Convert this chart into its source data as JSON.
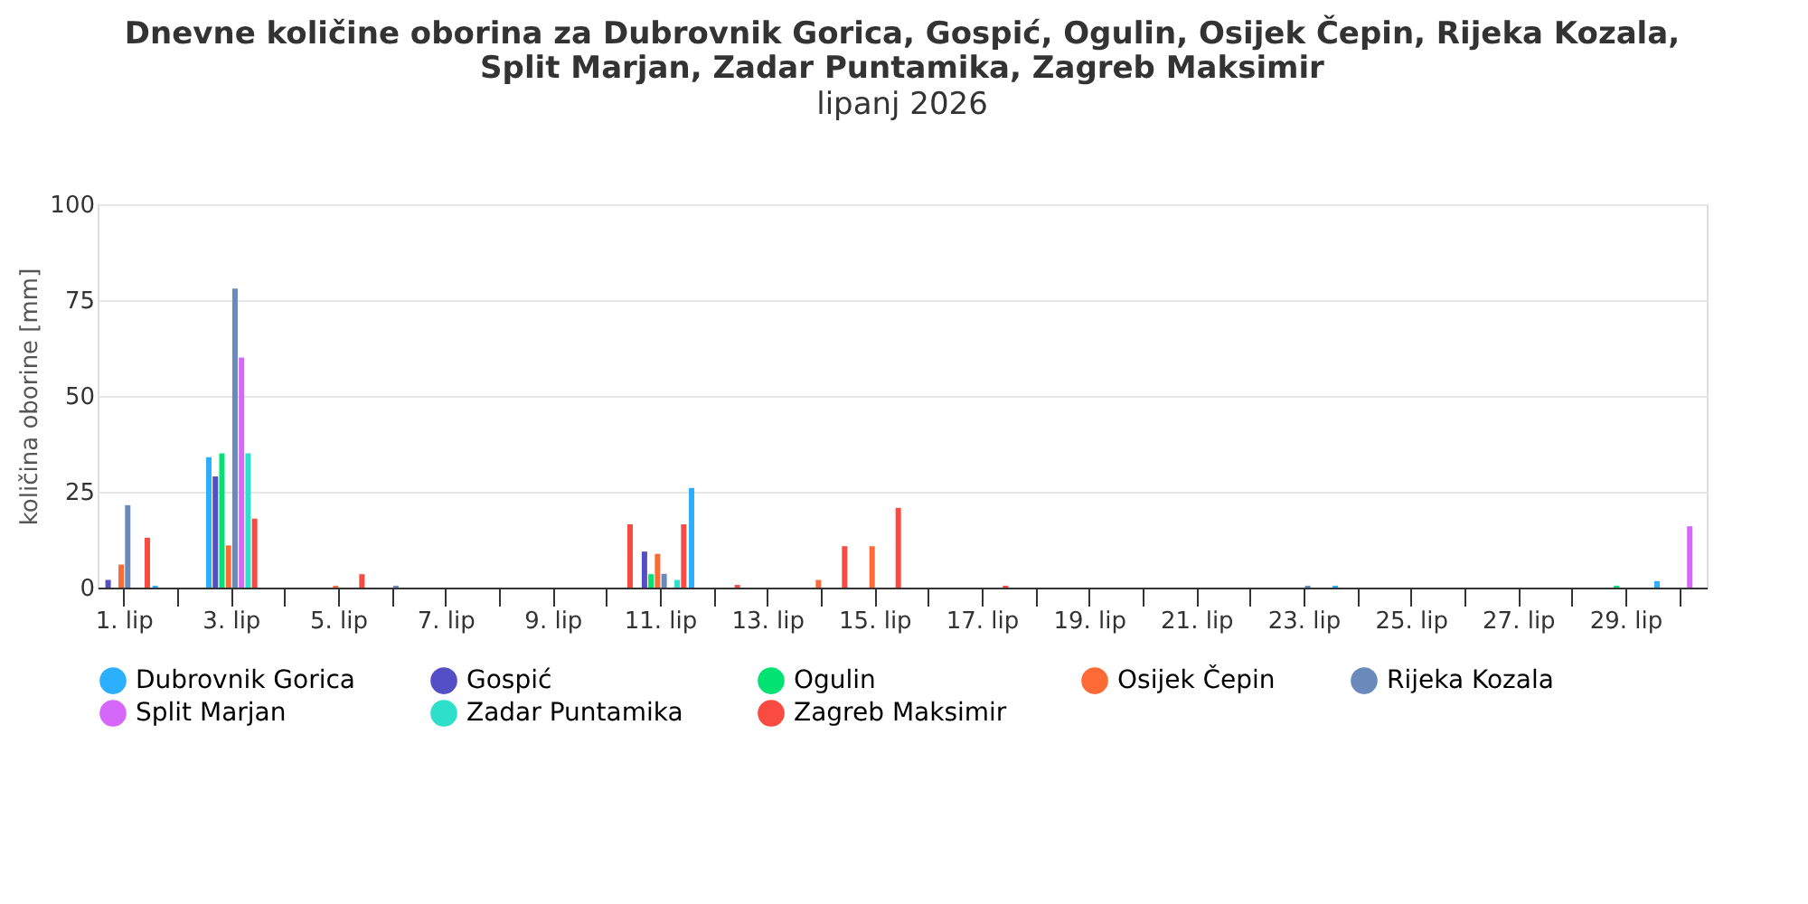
{
  "chart_data": {
    "type": "bar",
    "title": "Dnevne količine oborina za Dubrovnik Gorica, Gospić, Ogulin, Osijek Čepin, Rijeka Kozala, Split Marjan, Zadar Puntamika, Zagreb Maksimir",
    "subtitle": "lipanj 2026",
    "ylabel": "količina oborine [mm]",
    "categories": [
      "1. lip",
      null,
      "3. lip",
      null,
      "5. lip",
      null,
      "7. lip",
      null,
      "9. lip",
      null,
      "11. lip",
      null,
      "13. lip",
      null,
      "15. lip",
      null,
      "17. lip",
      null,
      "19. lip",
      null,
      "21. lip",
      null,
      "23. lip",
      null,
      "25. lip",
      null,
      "27. lip",
      null,
      "29. lip",
      null
    ],
    "series": [
      {
        "name": "Dubrovnik Gorica",
        "color": "#2caffe",
        "values": [
          0,
          0.5,
          34,
          0,
          0,
          0,
          0,
          0,
          0,
          0,
          0,
          26,
          0,
          0,
          0,
          0,
          0,
          0,
          0,
          0,
          0,
          0,
          0,
          0.5,
          0,
          0,
          0,
          0,
          0,
          1.7
        ]
      },
      {
        "name": "Gospić",
        "color": "#544fc5",
        "values": [
          2,
          0,
          29,
          0,
          0,
          0,
          0,
          0,
          0,
          0,
          9.4,
          0,
          0,
          0,
          0,
          0,
          0,
          0,
          0,
          0,
          0,
          0,
          0,
          0,
          0,
          0,
          0,
          0,
          0,
          0
        ]
      },
      {
        "name": "Ogulin",
        "color": "#00e272",
        "values": [
          0,
          0,
          35,
          0,
          0,
          0,
          0,
          0,
          0,
          0,
          3.5,
          0,
          0,
          0,
          0,
          0,
          0,
          0,
          0,
          0,
          0,
          0,
          0,
          0,
          0,
          0,
          0,
          0,
          0.5,
          0
        ]
      },
      {
        "name": "Osijek Čepin",
        "color": "#fe6a35",
        "values": [
          6,
          0,
          11,
          0,
          0.5,
          0,
          0,
          0,
          0,
          0,
          8.8,
          0,
          0,
          2,
          10.8,
          0,
          0,
          0,
          0,
          0,
          0,
          0,
          0,
          0,
          0,
          0,
          0,
          0,
          0,
          0
        ]
      },
      {
        "name": "Rijeka Kozala",
        "color": "#6b8abc",
        "values": [
          21.5,
          0,
          78,
          0,
          0,
          0.5,
          0,
          0,
          0,
          0,
          3.6,
          0,
          0,
          0,
          0,
          0,
          0,
          0,
          0,
          0,
          0,
          0,
          0.5,
          0,
          0,
          0,
          0,
          0,
          0,
          0
        ]
      },
      {
        "name": "Split Marjan",
        "color": "#d568fb",
        "values": [
          0,
          0,
          60,
          0,
          0,
          0,
          0,
          0,
          0,
          0,
          0,
          0,
          0,
          0,
          0,
          0,
          0,
          0,
          0,
          0,
          0,
          0,
          0,
          0,
          0,
          0,
          0,
          0,
          0,
          16
        ]
      },
      {
        "name": "Zadar Puntamika",
        "color": "#2ee0ca",
        "values": [
          0,
          0,
          35,
          0,
          0,
          0,
          0,
          0,
          0,
          0,
          2,
          0,
          0,
          0,
          0,
          0,
          0,
          0,
          0,
          0,
          0,
          0,
          0,
          0,
          0,
          0,
          0,
          0,
          0,
          0
        ]
      },
      {
        "name": "Zagreb Maksimir",
        "color": "#fa4b42",
        "values": [
          13,
          0,
          18,
          0,
          3.5,
          0,
          0,
          0,
          0,
          16.5,
          16.5,
          0.7,
          0,
          10.8,
          20.8,
          0,
          0.5,
          0,
          0,
          0,
          0,
          0,
          0,
          0,
          0,
          0,
          0,
          0,
          0,
          0
        ]
      }
    ],
    "ylim": [
      0,
      100
    ],
    "yticks": [
      0,
      25,
      50,
      75,
      100
    ],
    "grid": "y",
    "legend": "bottom"
  }
}
